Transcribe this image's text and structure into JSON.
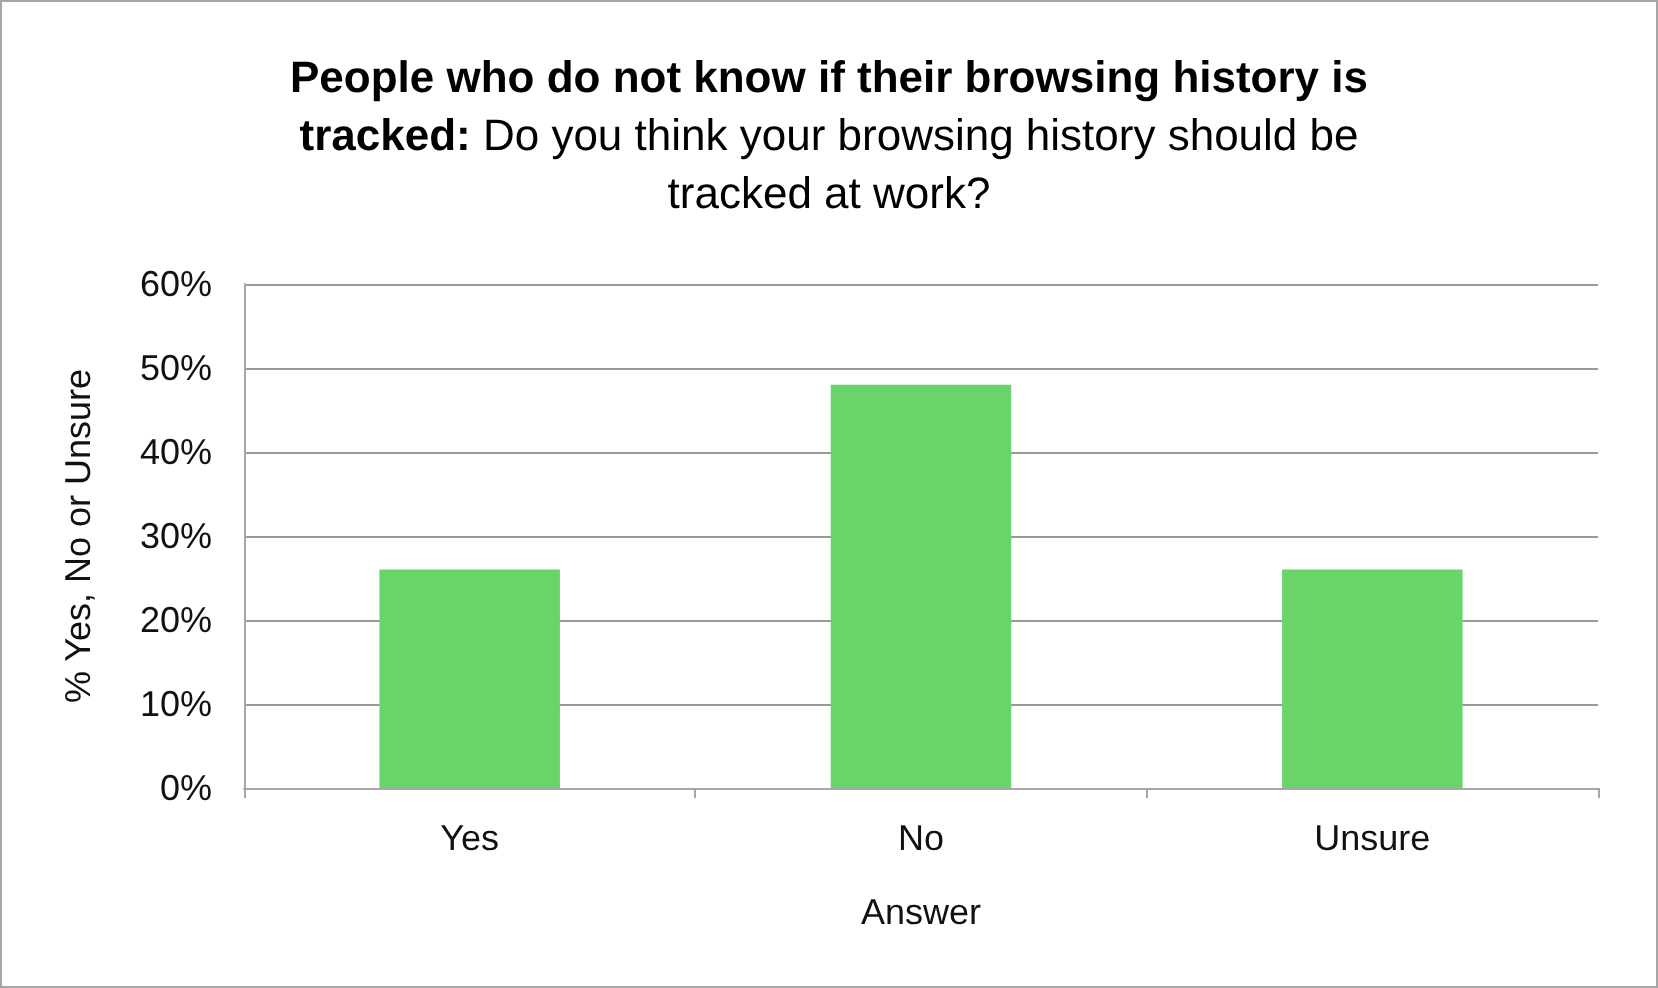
{
  "chart_data": {
    "type": "bar",
    "title": "People who do not know if their browsing history is tracked: Do you think your browsing history should be tracked at work?",
    "xlabel": "Answer",
    "ylabel": "% Yes, No or Unsure",
    "categories": [
      "Yes",
      "No",
      "Unsure"
    ],
    "values": [
      26,
      48,
      26
    ],
    "color": "#69d469",
    "ylim": [
      0,
      60
    ],
    "yticks": [
      {
        "value": 0,
        "label": "0%"
      },
      {
        "value": 10,
        "label": "10%"
      },
      {
        "value": 20,
        "label": "20%"
      },
      {
        "value": 30,
        "label": "30%"
      },
      {
        "value": 40,
        "label": "40%"
      },
      {
        "value": 50,
        "label": "50%"
      },
      {
        "value": 60,
        "label": "60%"
      }
    ],
    "grid": "y"
  }
}
